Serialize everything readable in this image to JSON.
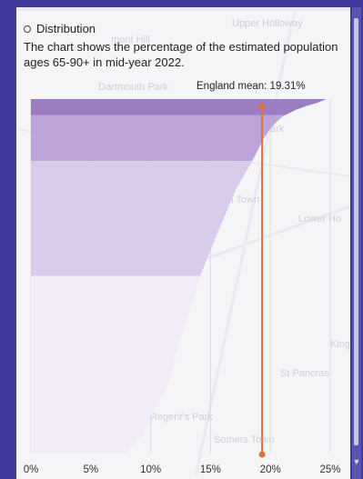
{
  "panel": {
    "section_title": "Distribution",
    "description": "The chart shows the percentage of the estimated population ages 65-90+ in mid-year 2022.",
    "mean_label": "England mean: 19.31%"
  },
  "map_labels": [
    "Upper Holloway",
    "Dartmouth Park",
    "Tufnell Park",
    "Kentish Town",
    "Lower Ho",
    "Kings",
    "St Pancras",
    "Regent's Park",
    "Somers Town",
    "mont Hill"
  ],
  "chart_data": {
    "type": "area",
    "orientation": "horizontal",
    "title": "",
    "xlabel": "",
    "ylabel": "",
    "xlim": [
      0,
      25
    ],
    "x_ticks": [
      "0%",
      "5%",
      "10%",
      "15%",
      "20%",
      "25%"
    ],
    "x_tick_values": [
      0,
      5,
      10,
      15,
      20,
      25
    ],
    "grid": true,
    "reference_line": {
      "label": "England mean: 19.31%",
      "value": 19.31,
      "color": "#e0703c"
    },
    "bands": [
      {
        "from": 0.0,
        "to": 0.045,
        "color": "#9b7dc2"
      },
      {
        "from": 0.045,
        "to": 0.175,
        "color": "#bca4d8"
      },
      {
        "from": 0.175,
        "to": 0.5,
        "color": "#d9cbea"
      },
      {
        "from": 0.5,
        "to": 1.0,
        "color": "#f1ecf8"
      }
    ],
    "profile": [
      [
        0.0,
        24.7
      ],
      [
        0.01,
        24.0
      ],
      [
        0.02,
        23.0
      ],
      [
        0.03,
        22.2
      ],
      [
        0.04,
        21.6
      ],
      [
        0.05,
        21.0
      ],
      [
        0.07,
        20.4
      ],
      [
        0.09,
        19.9
      ],
      [
        0.11,
        19.5
      ],
      [
        0.13,
        19.2
      ],
      [
        0.15,
        18.9
      ],
      [
        0.17,
        18.6
      ],
      [
        0.2,
        18.1
      ],
      [
        0.23,
        17.6
      ],
      [
        0.26,
        17.1
      ],
      [
        0.3,
        16.6
      ],
      [
        0.34,
        16.1
      ],
      [
        0.38,
        15.6
      ],
      [
        0.43,
        15.0
      ],
      [
        0.48,
        14.4
      ],
      [
        0.53,
        13.9
      ],
      [
        0.58,
        13.4
      ],
      [
        0.63,
        13.0
      ],
      [
        0.68,
        12.5
      ],
      [
        0.73,
        12.1
      ],
      [
        0.78,
        11.7
      ],
      [
        0.83,
        11.2
      ],
      [
        0.87,
        10.5
      ],
      [
        0.91,
        9.9
      ],
      [
        0.95,
        9.3
      ],
      [
        0.98,
        8.5
      ],
      [
        1.0,
        8.0
      ]
    ]
  }
}
